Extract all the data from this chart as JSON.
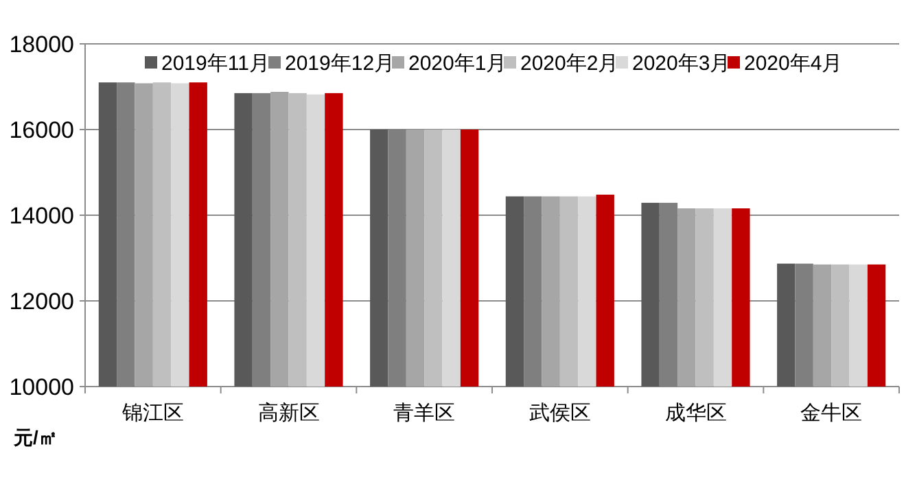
{
  "chart_data": {
    "type": "bar",
    "ylabel": "元/㎡",
    "categories": [
      "锦江区",
      "高新区",
      "青羊区",
      "武侯区",
      "成华区",
      "金牛区"
    ],
    "series": [
      {
        "name": "2019年11月",
        "color": "#595959",
        "values": [
          17100,
          16850,
          16000,
          14440,
          14290,
          12870
        ]
      },
      {
        "name": "2019年12月",
        "color": "#7f7f7f",
        "values": [
          17100,
          16850,
          16000,
          14440,
          14290,
          12870
        ]
      },
      {
        "name": "2020年1月",
        "color": "#a6a6a6",
        "values": [
          17080,
          16880,
          16000,
          14440,
          14160,
          12850
        ]
      },
      {
        "name": "2020年2月",
        "color": "#bfbfbf",
        "values": [
          17100,
          16850,
          16000,
          14440,
          14160,
          12850
        ]
      },
      {
        "name": "2020年3月",
        "color": "#d9d9d9",
        "values": [
          17080,
          16820,
          16000,
          14440,
          14160,
          12850
        ]
      },
      {
        "name": "2020年4月",
        "color": "#c00000",
        "values": [
          17100,
          16850,
          16000,
          14480,
          14160,
          12850
        ]
      }
    ],
    "ylim": [
      10000,
      18000
    ],
    "yticks": [
      10000,
      12000,
      14000,
      16000,
      18000
    ],
    "grid": "y",
    "legend": "top"
  }
}
